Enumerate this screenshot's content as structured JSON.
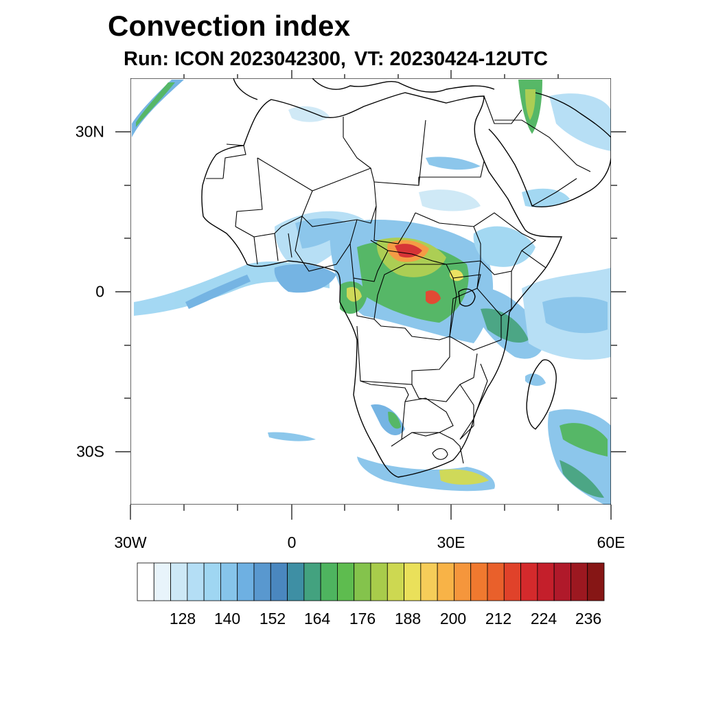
{
  "title": "Convection index",
  "subtitle": {
    "run": "Run: ICON 2023042300,",
    "valid_time": "VT: 20230424-12UTC"
  },
  "axes": {
    "x_labels": [
      "30W",
      "0",
      "30E",
      "60E"
    ],
    "y_labels": [
      "30N",
      "0",
      "30S"
    ],
    "lon_range": [
      -30,
      60
    ],
    "lat_range": [
      -40,
      40
    ]
  },
  "colorbar": {
    "colors": [
      "#ffffff",
      "#e8f4fb",
      "#cde8f6",
      "#b4def5",
      "#9fd6f2",
      "#86c4ea",
      "#6eb0e2",
      "#5998cf",
      "#4a87bf",
      "#3e8fa4",
      "#43a27f",
      "#4eb45f",
      "#5ebc4f",
      "#84c34c",
      "#a8cc4b",
      "#cdd851",
      "#eae05a",
      "#f6cd59",
      "#f8b347",
      "#f5963c",
      "#f0792f",
      "#e9602b",
      "#e0422a",
      "#d42a2c",
      "#c41f2b",
      "#b0192a",
      "#9c1820",
      "#861615"
    ],
    "tick_labels": [
      "128",
      "140",
      "152",
      "164",
      "176",
      "188",
      "200",
      "212",
      "224",
      "236"
    ]
  }
}
